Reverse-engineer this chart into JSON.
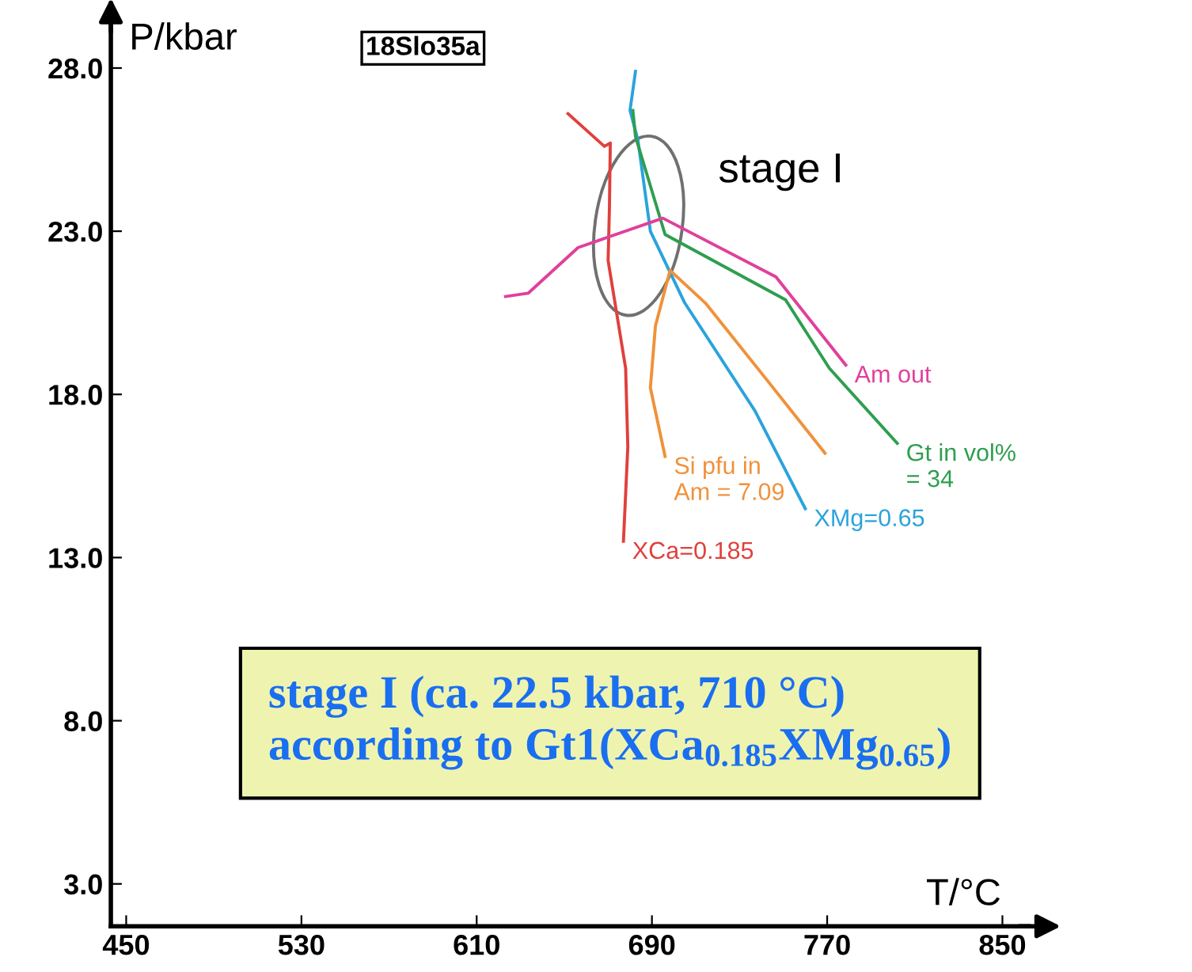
{
  "chart_data": {
    "type": "line",
    "title": "18Slo35a",
    "xlabel": "T/°C",
    "ylabel": "P/kbar",
    "xlim": [
      443,
      862
    ],
    "ylim": [
      1.7,
      29.4
    ],
    "xticks": [
      450,
      530,
      610,
      690,
      770,
      850
    ],
    "yticks": [
      {
        "value": 3,
        "label": "3.0"
      },
      {
        "value": 8,
        "label": "8.0"
      },
      {
        "value": 13,
        "label": "13.0"
      },
      {
        "value": 18,
        "label": "18.0"
      },
      {
        "value": 23,
        "label": "23.0"
      },
      {
        "value": 28,
        "label": "28.0"
      }
    ],
    "grid": false,
    "legend": false,
    "marker": "none",
    "line_style": "solid",
    "series": [
      {
        "name": "XCa=0.185",
        "color": "#e0403c",
        "x": [
          651.7,
          668.3,
          671,
          670.6,
          670,
          678,
          679,
          677
        ],
        "values": [
          26.6,
          25.6,
          25.7,
          23.7,
          22.1,
          18.8,
          16.4,
          13.5
        ]
      },
      {
        "name": "XMg=0.65",
        "color": "#2aa3dc",
        "x": [
          682.5,
          680,
          683.6,
          689.3,
          705,
          737,
          760
        ],
        "values": [
          27.9,
          26.7,
          25.8,
          23.0,
          20.8,
          17.5,
          14.5
        ]
      },
      {
        "name": "Si pfu in\nAm = 7.09",
        "color": "#f0913a",
        "x": [
          696,
          689.3,
          691.6,
          698.3,
          714.4,
          741.8,
          769
        ],
        "values": [
          16.1,
          18.2,
          20.1,
          21.8,
          20.8,
          18.5,
          16.2
        ]
      },
      {
        "name": "Gt in vol%\n= 34",
        "color": "#2e9e4f",
        "x": [
          681.3,
          682.5,
          696,
          751,
          771,
          802
        ],
        "values": [
          26.7,
          25.9,
          22.9,
          20.9,
          18.8,
          16.5
        ]
      },
      {
        "name": "Am out",
        "color": "#e0409c",
        "x": [
          623.2,
          633.5,
          656.3,
          695,
          746.6,
          778.5
        ],
        "values": [
          21.0,
          21.1,
          22.5,
          23.4,
          21.6,
          18.9
        ]
      }
    ],
    "annotations": [
      "stage I",
      "stage I (ca. 22.5 kbar, 710 °C)\naccording to Gt1(XCa$_{0.185}$XMg$_{0.65}$)"
    ]
  }
}
